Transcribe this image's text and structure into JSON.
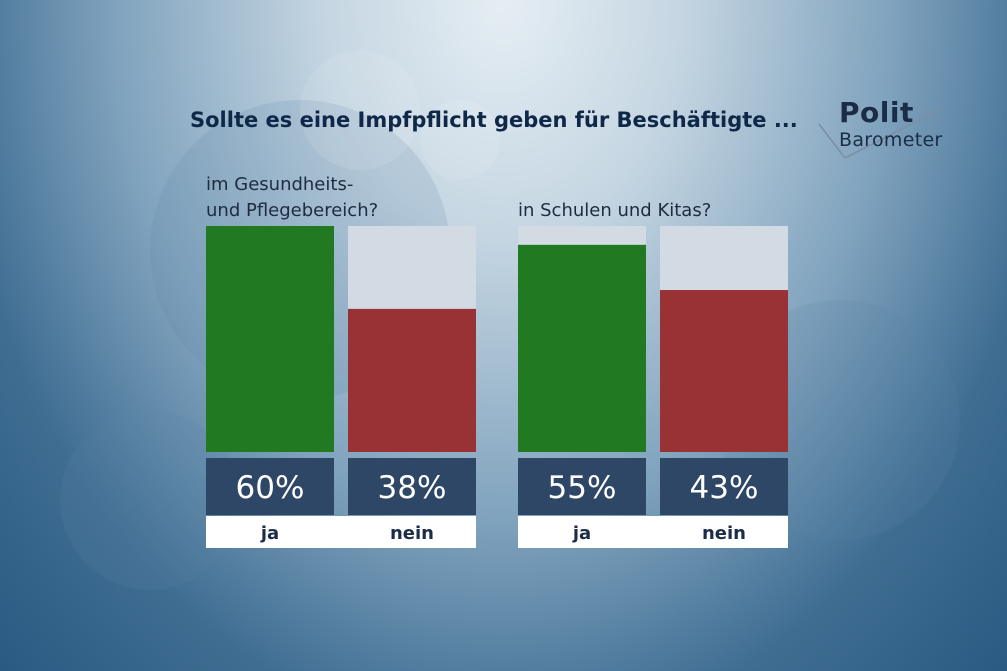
{
  "colors": {
    "ja": "#217a21",
    "nein": "#983234",
    "track": "#d2dbe3",
    "value_box": "#2f4766",
    "label_box": "#ffffff"
  },
  "chart_data": [
    {
      "type": "bar",
      "title": "Sollte es eine Impfpflicht geben für Beschäftigte ...",
      "subtitle_lines": [
        "im Gesundheits-",
        "und Pflegebereich?"
      ],
      "categories": [
        "ja",
        "nein"
      ],
      "values": [
        60,
        38
      ],
      "value_labels": [
        "60%",
        "38%"
      ],
      "ylim": [
        0,
        60
      ]
    },
    {
      "type": "bar",
      "title": "Sollte es eine Impfpflicht geben für Beschäftigte ...",
      "subtitle_lines": [
        "in Schulen und Kitas?"
      ],
      "categories": [
        "ja",
        "nein"
      ],
      "values": [
        55,
        43
      ],
      "value_labels": [
        "55%",
        "43%"
      ],
      "ylim": [
        0,
        60
      ]
    }
  ],
  "header": {
    "title": "Sollte es eine Impfpflicht geben für Beschäftigte ...",
    "logo_line1": "Polit",
    "logo_line2": "Barometer"
  }
}
